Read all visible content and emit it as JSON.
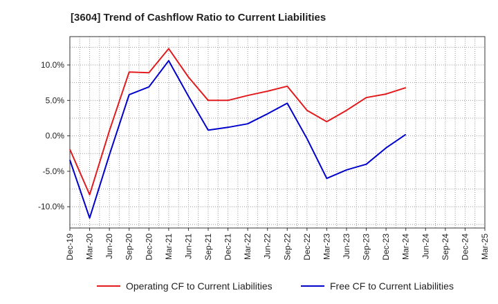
{
  "chart_data": {
    "type": "line",
    "title": "[3604]  Trend of Cashflow Ratio to Current Liabilities",
    "xlabel": "",
    "ylabel": "",
    "categories": [
      "Dec-19",
      "Mar-20",
      "Jun-20",
      "Sep-20",
      "Dec-20",
      "Mar-21",
      "Jun-21",
      "Sep-21",
      "Dec-21",
      "Mar-22",
      "Jun-22",
      "Sep-22",
      "Dec-22",
      "Mar-23",
      "Jun-23",
      "Sep-23",
      "Dec-23",
      "Mar-24",
      "Jun-24",
      "Sep-24",
      "Dec-24",
      "Mar-25"
    ],
    "y_ticks": [
      "-10.0%",
      "-5.0%",
      "0.0%",
      "5.0%",
      "10.0%"
    ],
    "y_tick_values": [
      -10,
      -5,
      0,
      5,
      10
    ],
    "ylim": [
      -13,
      14
    ],
    "grid": true,
    "legend_position": "bottom",
    "series": [
      {
        "name": "Operating CF to Current Liabilities",
        "color": "#e31a1c",
        "values": [
          -1.9,
          -8.3,
          0.7,
          9.0,
          8.9,
          12.3,
          8.3,
          5.0,
          5.0,
          5.7,
          6.3,
          7.0,
          3.6,
          2.0,
          3.6,
          5.4,
          5.9,
          6.8,
          null,
          null,
          null,
          null
        ]
      },
      {
        "name": "Free CF to Current Liabilities",
        "color": "#0000cc",
        "values": [
          -3.4,
          -11.6,
          -2.7,
          5.8,
          6.9,
          10.6,
          5.6,
          0.8,
          1.2,
          1.7,
          3.1,
          4.6,
          -0.4,
          -6.0,
          -4.8,
          -4.0,
          -1.7,
          0.2,
          null,
          null,
          null,
          null
        ]
      }
    ]
  }
}
